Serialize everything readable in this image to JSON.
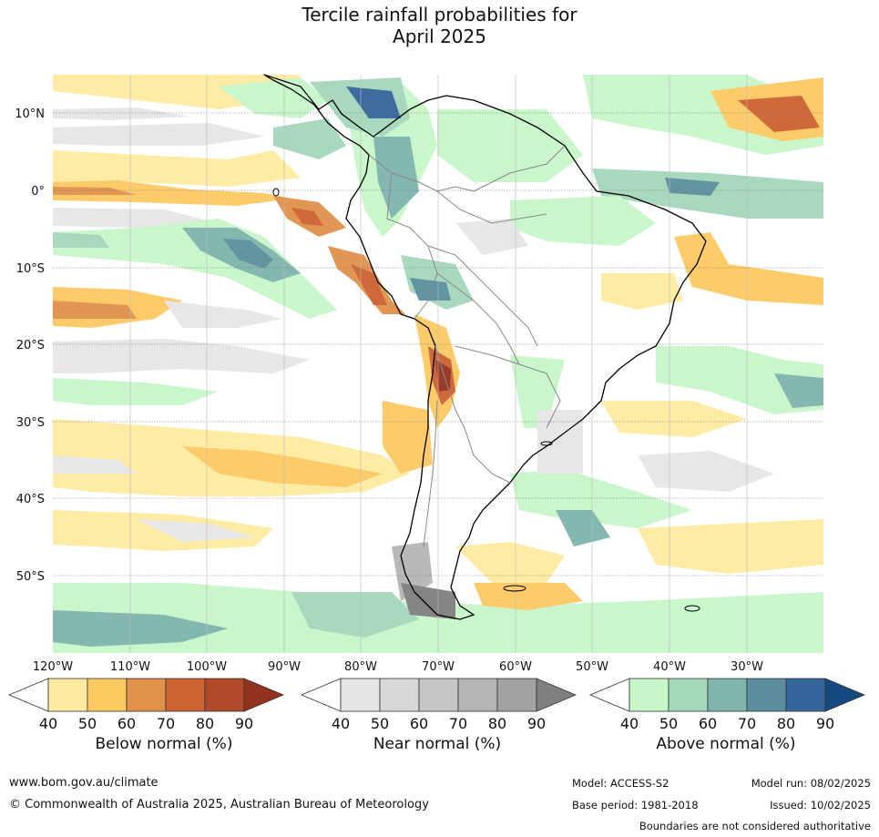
{
  "title": {
    "line1": "Tercile rainfall probabilities for",
    "line2": "April 2025"
  },
  "map": {
    "lat_labels": [
      "10°N",
      "0°",
      "10°S",
      "20°S",
      "30°S",
      "40°S",
      "50°S"
    ],
    "lon_labels": [
      "120°W",
      "110°W",
      "100°W",
      "90°W",
      "80°W",
      "70°W",
      "60°W",
      "50°W",
      "40°W",
      "30°W"
    ]
  },
  "colorbars": [
    {
      "id": "below",
      "label": "Below normal (%)",
      "ticks": [
        "40",
        "50",
        "60",
        "70",
        "80",
        "90"
      ],
      "colors": [
        "#ffffff",
        "#feeaa0",
        "#fdc961",
        "#e0914a",
        "#cd6232",
        "#b04a28",
        "#93331f"
      ]
    },
    {
      "id": "near",
      "label": "Near normal (%)",
      "ticks": [
        "40",
        "50",
        "60",
        "70",
        "80",
        "90"
      ],
      "colors": [
        "#ffffff",
        "#e6e6e6",
        "#d7d7d7",
        "#c6c6c6",
        "#b5b5b5",
        "#a2a2a2",
        "#7f7f7f"
      ]
    },
    {
      "id": "above",
      "label": "Above normal (%)",
      "ticks": [
        "40",
        "50",
        "60",
        "70",
        "80",
        "90"
      ],
      "colors": [
        "#ffffff",
        "#c7f6c9",
        "#a4d8bb",
        "#7fb4ad",
        "#5b8f9e",
        "#35659a",
        "#15497f"
      ]
    }
  ],
  "footer": {
    "url": "www.bom.gov.au/climate",
    "copyright": "© Commonwealth of Australia 2025, Australian Bureau of Meteorology",
    "model": "Model: ACCESS-S2",
    "base_period": "Base period: 1981-2018",
    "model_run": "Model run: 08/02/2025",
    "issued": "Issued: 10/02/2025",
    "disclaimer": "Boundaries are not considered authoritative"
  }
}
